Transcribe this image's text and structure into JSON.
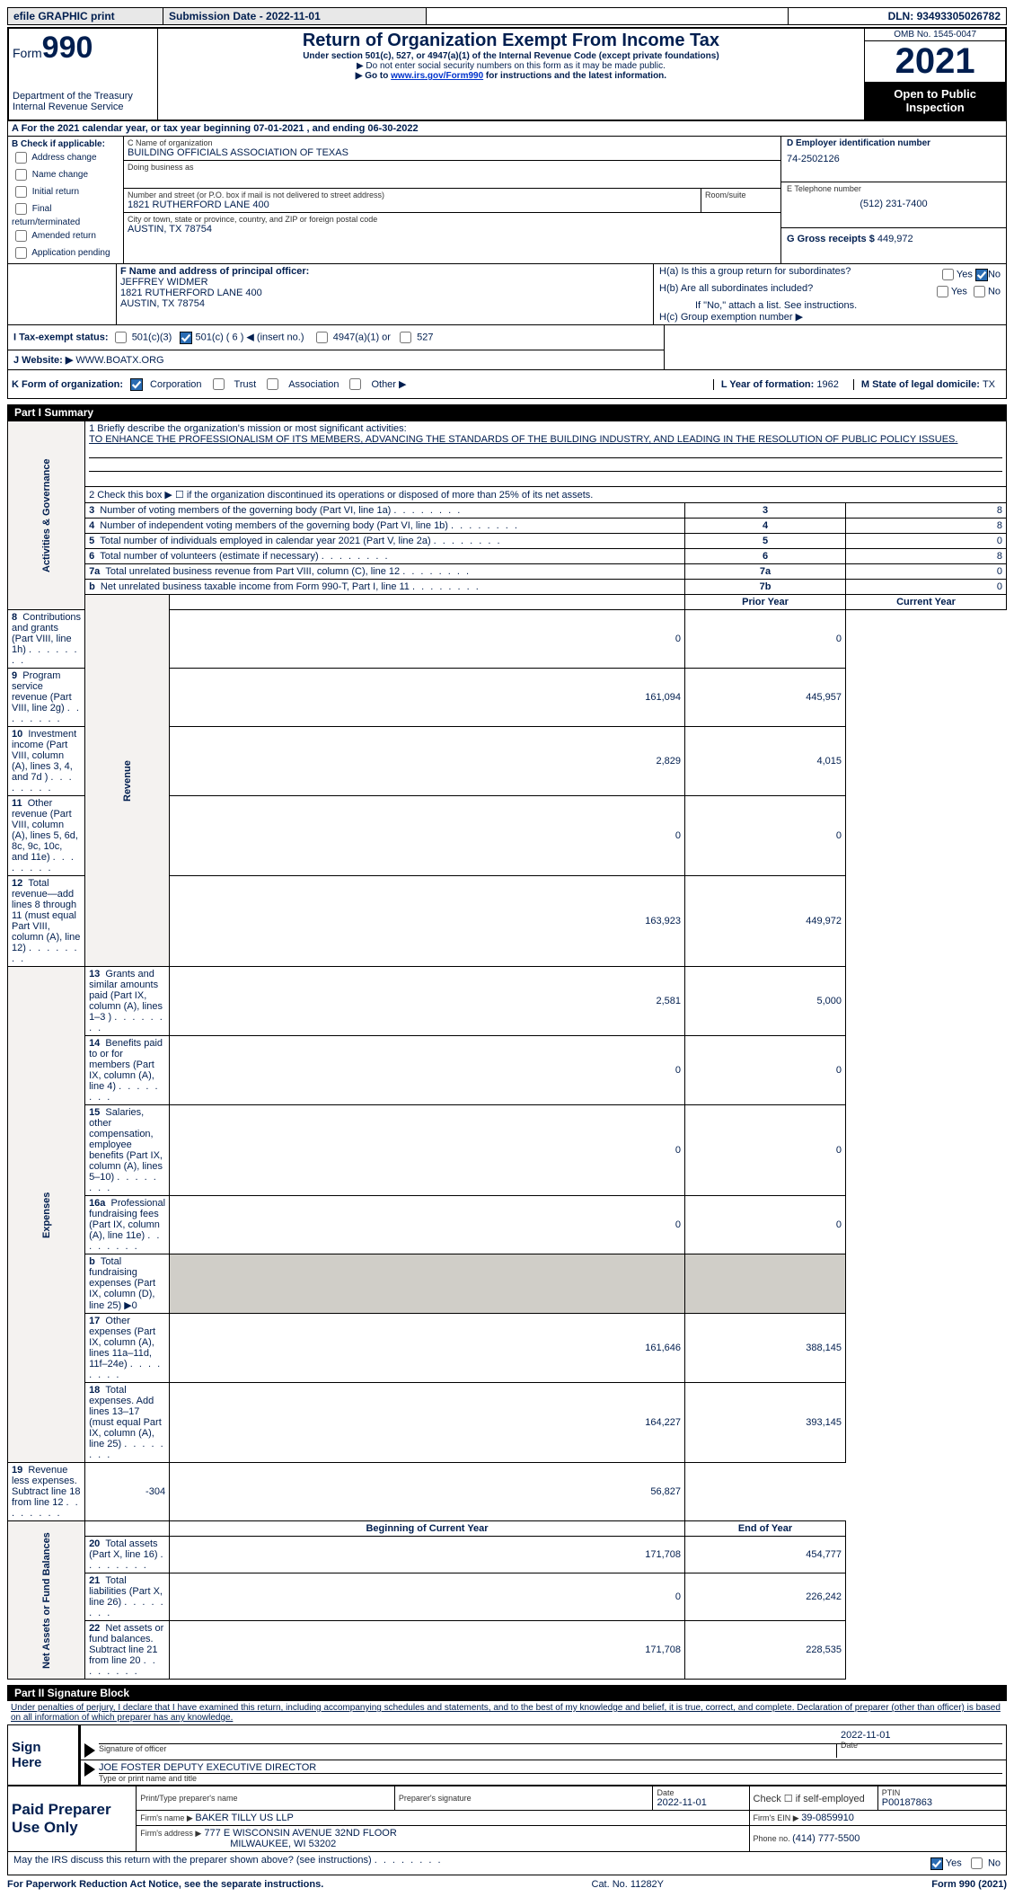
{
  "topbar": {
    "efile": "efile GRAPHIC print",
    "submission_label": "Submission Date - ",
    "submission_date": "2022-11-01",
    "dln_label": "DLN: ",
    "dln": "93493305026782"
  },
  "header": {
    "form_word": "Form",
    "form_no": "990",
    "dept": "Department of the Treasury\nInternal Revenue Service",
    "title": "Return of Organization Exempt From Income Tax",
    "sub1": "Under section 501(c), 527, or 4947(a)(1) of the Internal Revenue Code (except private foundations)",
    "sub2": "▶ Do not enter social security numbers on this form as it may be made public.",
    "sub3_a": "▶ Go to ",
    "sub3_link": "www.irs.gov/Form990",
    "sub3_b": " for instructions and the latest information.",
    "omb": "OMB No. 1545-0047",
    "year": "2021",
    "pub": "Open to Public Inspection"
  },
  "secA": {
    "line": "A For the 2021 calendar year, or tax year beginning 07-01-2021   , and ending 06-30-2022"
  },
  "secB": {
    "head": "B Check if applicable:",
    "opts": [
      "Address change",
      "Name change",
      "Initial return",
      "Final return/terminated",
      "Amended return",
      "Application pending"
    ]
  },
  "secC": {
    "c_label": "C Name of organization",
    "c_val": "BUILDING OFFICIALS ASSOCIATION OF TEXAS",
    "dba": "Doing business as",
    "addr_label": "Number and street (or P.O. box if mail is not delivered to street address)",
    "room": "Room/suite",
    "addr": "1821 RUTHERFORD LANE 400",
    "city_label": "City or town, state or province, country, and ZIP or foreign postal code",
    "city": "AUSTIN, TX  78754"
  },
  "secD": {
    "label": "D Employer identification number",
    "val": "74-2502126"
  },
  "secE": {
    "label": "E Telephone number",
    "val": "(512) 231-7400"
  },
  "secG": {
    "label": "G Gross receipts $ ",
    "val": "449,972"
  },
  "secF": {
    "label": "F Name and address of principal officer:",
    "name": "JEFFREY WIDMER",
    "addr": "1821 RUTHERFORD LANE 400",
    "city": "AUSTIN, TX  78754"
  },
  "secH": {
    "ha": "H(a)  Is this a group return for subordinates?",
    "hb": "H(b)  Are all subordinates included?",
    "hb2": "If \"No,\" attach a list. See instructions.",
    "hc": "H(c)  Group exemption number ▶",
    "yes": "Yes",
    "no": "No"
  },
  "secI": {
    "label": "I    Tax-exempt status:",
    "o1": "501(c)(3)",
    "o2a": "501(c) ( ",
    "o2n": "6",
    "o2b": " ) ◀ (insert no.)",
    "o3": "4947(a)(1) or",
    "o4": "527"
  },
  "secJ": {
    "label": "J   Website: ▶ ",
    "val": "WWW.BOATX.ORG"
  },
  "secK": {
    "label": "K Form of organization:",
    "opts": [
      "Corporation",
      "Trust",
      "Association",
      "Other ▶"
    ],
    "l_label": "L Year of formation: ",
    "l_val": "1962",
    "m_label": "M State of legal domicile: ",
    "m_val": "TX"
  },
  "part1": {
    "title": "Part I    Summary",
    "q1a": "1  Briefly describe the organization's mission or most significant activities:",
    "q1b": "TO ENHANCE THE PROFESSIONALISM OF ITS MEMBERS, ADVANCING THE STANDARDS OF THE BUILDING INDUSTRY, AND LEADING IN THE RESOLUTION OF PUBLIC POLICY ISSUES.",
    "q2": "2   Check this box ▶ ☐ if the organization discontinued its operations or disposed of more than 25% of its net assets.",
    "rows_ag": [
      {
        "n": "3",
        "t": "Number of voting members of the governing body (Part VI, line 1a)",
        "box": "3",
        "v": "8"
      },
      {
        "n": "4",
        "t": "Number of independent voting members of the governing body (Part VI, line 1b)",
        "box": "4",
        "v": "8"
      },
      {
        "n": "5",
        "t": "Total number of individuals employed in calendar year 2021 (Part V, line 2a)",
        "box": "5",
        "v": "0"
      },
      {
        "n": "6",
        "t": "Total number of volunteers (estimate if necessary)",
        "box": "6",
        "v": "8"
      },
      {
        "n": "7a",
        "t": "Total unrelated business revenue from Part VIII, column (C), line 12",
        "box": "7a",
        "v": "0"
      },
      {
        "n": "b",
        "t": "Net unrelated business taxable income from Form 990-T, Part I, line 11",
        "box": "7b",
        "v": "0"
      }
    ],
    "hdr_prior": "Prior Year",
    "hdr_curr": "Current Year",
    "rows_rev": [
      {
        "n": "8",
        "t": "Contributions and grants (Part VIII, line 1h)",
        "p": "0",
        "c": "0"
      },
      {
        "n": "9",
        "t": "Program service revenue (Part VIII, line 2g)",
        "p": "161,094",
        "c": "445,957"
      },
      {
        "n": "10",
        "t": "Investment income (Part VIII, column (A), lines 3, 4, and 7d )",
        "p": "2,829",
        "c": "4,015"
      },
      {
        "n": "11",
        "t": "Other revenue (Part VIII, column (A), lines 5, 6d, 8c, 9c, 10c, and 11e)",
        "p": "0",
        "c": "0"
      },
      {
        "n": "12",
        "t": "Total revenue—add lines 8 through 11 (must equal Part VIII, column (A), line 12)",
        "p": "163,923",
        "c": "449,972"
      }
    ],
    "rows_exp": [
      {
        "n": "13",
        "t": "Grants and similar amounts paid (Part IX, column (A), lines 1–3 )",
        "p": "2,581",
        "c": "5,000"
      },
      {
        "n": "14",
        "t": "Benefits paid to or for members (Part IX, column (A), line 4)",
        "p": "0",
        "c": "0"
      },
      {
        "n": "15",
        "t": "Salaries, other compensation, employee benefits (Part IX, column (A), lines 5–10)",
        "p": "0",
        "c": "0"
      },
      {
        "n": "16a",
        "t": "Professional fundraising fees (Part IX, column (A), line 11e)",
        "p": "0",
        "c": "0"
      },
      {
        "n": "b",
        "t": "Total fundraising expenses (Part IX, column (D), line 25) ▶0",
        "p": "",
        "c": "",
        "shade": true
      },
      {
        "n": "17",
        "t": "Other expenses (Part IX, column (A), lines 11a–11d, 11f–24e)",
        "p": "161,646",
        "c": "388,145"
      },
      {
        "n": "18",
        "t": "Total expenses. Add lines 13–17 (must equal Part IX, column (A), line 25)",
        "p": "164,227",
        "c": "393,145"
      },
      {
        "n": "19",
        "t": "Revenue less expenses. Subtract line 18 from line 12",
        "p": "-304",
        "c": "56,827"
      }
    ],
    "hdr_beg": "Beginning of Current Year",
    "hdr_end": "End of Year",
    "rows_net": [
      {
        "n": "20",
        "t": "Total assets (Part X, line 16)",
        "p": "171,708",
        "c": "454,777"
      },
      {
        "n": "21",
        "t": "Total liabilities (Part X, line 26)",
        "p": "0",
        "c": "226,242"
      },
      {
        "n": "22",
        "t": "Net assets or fund balances. Subtract line 21 from line 20",
        "p": "171,708",
        "c": "228,535"
      }
    ],
    "vlabels": {
      "ag": "Activities & Governance",
      "rev": "Revenue",
      "exp": "Expenses",
      "net": "Net Assets or Fund Balances"
    }
  },
  "part2": {
    "title": "Part II    Signature Block",
    "decl": "Under penalties of perjury, I declare that I have examined this return, including accompanying schedules and statements, and to the best of my knowledge and belief, it is true, correct, and complete. Declaration of preparer (other than officer) is based on all information of which preparer has any knowledge.",
    "sign_here": "Sign Here",
    "sig_officer": "Signature of officer",
    "sig_date": "2022-11-01",
    "date_lbl": "Date",
    "name_title": "JOE FOSTER  DEPUTY EXECUTIVE DIRECTOR",
    "name_lbl": "Type or print name and title",
    "paid": "Paid Preparer Use Only",
    "pp_name_lbl": "Print/Type preparer's name",
    "pp_sig_lbl": "Preparer's signature",
    "pp_date_lbl": "Date",
    "pp_date": "2022-11-01",
    "pp_self": "Check ☐ if self-employed",
    "ptin_lbl": "PTIN",
    "ptin": "P00187863",
    "firm_name_lbl": "Firm's name    ▶ ",
    "firm_name": "BAKER TILLY US LLP",
    "firm_ein_lbl": "Firm's EIN ▶ ",
    "firm_ein": "39-0859910",
    "firm_addr_lbl": "Firm's address ▶",
    "firm_addr1": "777 E WISCONSIN AVENUE 32ND FLOOR",
    "firm_addr2": "MILWAUKEE, WI  53202",
    "phone_lbl": "Phone no. ",
    "phone": "(414) 777-5500",
    "discuss": "May the IRS discuss this return with the preparer shown above? (see instructions)",
    "yes": "Yes",
    "no": "No"
  },
  "footer": {
    "left": "For Paperwork Reduction Act Notice, see the separate instructions.",
    "mid": "Cat. No. 11282Y",
    "right": "Form 990 (2021)"
  }
}
